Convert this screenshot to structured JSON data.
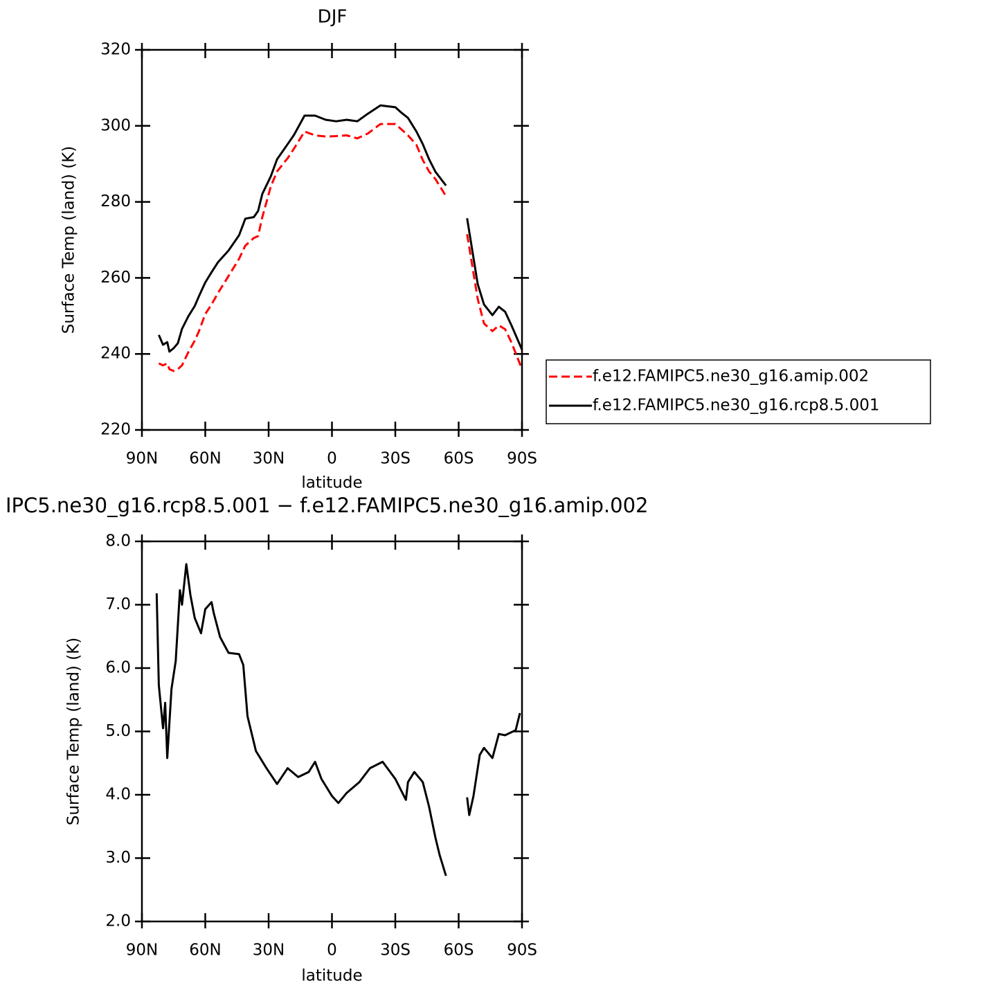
{
  "chart_data": [
    {
      "type": "line",
      "title": "DJF",
      "ylabel": "Surface Temp (land) (K)",
      "xlabel": "latitude",
      "x": [
        82,
        80,
        78,
        77,
        75,
        73,
        71,
        68,
        65,
        63,
        60,
        57,
        54,
        49,
        44,
        41,
        37,
        35,
        33,
        29,
        26,
        21,
        18,
        13,
        8,
        3,
        -2,
        -7,
        -12,
        -17,
        -23,
        -30,
        -33,
        -36,
        -40,
        -43,
        -46,
        -49,
        -54,
        -60,
        -64,
        -69,
        -72,
        -76,
        -79,
        -82,
        -85,
        -90
      ],
      "series": [
        {
          "name": "f.e12.FAMIPC5.ne30_g16.amip.002",
          "color": "#ff0000",
          "style": "dashed",
          "values": [
            237.5,
            237,
            237.5,
            236,
            235.5,
            236,
            237,
            240.5,
            243.5,
            246,
            250.5,
            253,
            256,
            260.5,
            265,
            268.5,
            270.5,
            271,
            276,
            284,
            288,
            291.5,
            294,
            298.5,
            297.5,
            297.2,
            297.3,
            297.5,
            296.7,
            298,
            300.5,
            300.5,
            299,
            297.5,
            295,
            291,
            288,
            286,
            281.5,
            null,
            271.5,
            254.5,
            248,
            246,
            247.5,
            246.5,
            243,
            236
          ]
        },
        {
          "name": "f.e12.FAMIPC5.ne30_g16.rcp8.5.001",
          "color": "#000000",
          "style": "solid",
          "values": [
            245,
            242.4,
            243.1,
            240.6,
            241.5,
            242.8,
            246.6,
            249.9,
            252.6,
            255.2,
            258.8,
            261.5,
            264.1,
            267.2,
            271.2,
            275.6,
            276,
            277.6,
            282.1,
            286.7,
            291.2,
            295.2,
            297.6,
            302.7,
            302.7,
            301.6,
            301.2,
            301.6,
            301.2,
            303.2,
            305.4,
            304.9,
            303.4,
            302.1,
            298.5,
            295.2,
            291.2,
            287.9,
            284.3,
            null,
            275.7,
            258.4,
            253,
            250.2,
            252.4,
            251.1,
            247.5,
            241.1
          ]
        }
      ],
      "xlim": [
        90,
        -90
      ],
      "xticks": [
        {
          "value": 90,
          "label": "90N"
        },
        {
          "value": 60,
          "label": "60N"
        },
        {
          "value": 30,
          "label": "30N"
        },
        0,
        {
          "value": -30,
          "label": "30S"
        },
        {
          "value": -60,
          "label": "60S"
        },
        {
          "value": -90,
          "label": "90S"
        }
      ],
      "ylim": [
        220,
        320
      ],
      "yticks": [
        220,
        240,
        260,
        280,
        300,
        320
      ],
      "legend": "right"
    },
    {
      "type": "line",
      "title": "IPC5.ne30_g16.rcp8.5.001 − f.e12.FAMIPC5.ne30_g16.amip.002",
      "ylabel": "Surface Temp (land) (K)",
      "xlabel": "latitude",
      "x": [
        83,
        82,
        80,
        79,
        78,
        76,
        74,
        72,
        71,
        69,
        67,
        65,
        62,
        60,
        57,
        56,
        53,
        49,
        44,
        42,
        40,
        36,
        31,
        26,
        21,
        16,
        11,
        8,
        5,
        0,
        -3,
        -7,
        -13,
        -18,
        -24,
        -30,
        -35,
        -36,
        -39,
        -43,
        -46,
        -49,
        -51,
        -54,
        -60,
        -64,
        -65,
        -67,
        -70,
        -72,
        -76,
        -79,
        -82,
        -87,
        -89
      ],
      "values": [
        7.18,
        5.73,
        5.05,
        5.45,
        4.58,
        5.67,
        6.11,
        7.23,
        7.0,
        7.64,
        7.15,
        6.79,
        6.55,
        6.93,
        7.04,
        6.87,
        6.49,
        6.24,
        6.22,
        6.05,
        5.24,
        4.69,
        4.42,
        4.17,
        4.42,
        4.28,
        4.36,
        4.52,
        4.25,
        3.98,
        3.87,
        4.03,
        4.2,
        4.42,
        4.52,
        4.25,
        3.92,
        4.2,
        4.36,
        4.2,
        3.81,
        3.32,
        3.05,
        2.72,
        null,
        3.96,
        3.68,
        3.98,
        4.63,
        4.74,
        4.58,
        4.96,
        4.94,
        5.02,
        5.29
      ],
      "color": "#000000",
      "xlim": [
        90,
        -90
      ],
      "xticks": [
        {
          "value": 90,
          "label": "90N"
        },
        {
          "value": 60,
          "label": "60N"
        },
        {
          "value": 30,
          "label": "30N"
        },
        0,
        {
          "value": -30,
          "label": "30S"
        },
        {
          "value": -60,
          "label": "60S"
        },
        {
          "value": -90,
          "label": "90S"
        }
      ],
      "ylim": [
        2,
        8
      ],
      "yticks": [
        {
          "value": 2,
          "label": "2.0"
        },
        {
          "value": 3,
          "label": "3.0"
        },
        {
          "value": 4,
          "label": "4.0"
        },
        {
          "value": 5,
          "label": "5.0"
        },
        {
          "value": 6,
          "label": "6.0"
        },
        {
          "value": 7,
          "label": "7.0"
        },
        {
          "value": 8,
          "label": "8.0"
        }
      ]
    }
  ]
}
